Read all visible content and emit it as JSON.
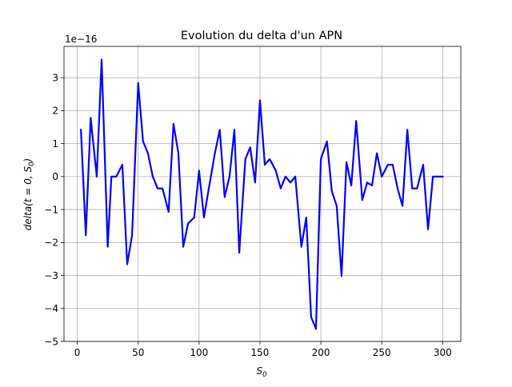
{
  "chart_data": {
    "type": "line",
    "title": "Evolution du delta d'un APN",
    "xlabel": "S",
    "xlabel_sub": "0",
    "ylabel": "delta(t = 0, S",
    "ylabel_sub": "0",
    "ylabel_close": ")",
    "y_offset_label": "1e−16",
    "xlim": [
      -10.9,
      314.9
    ],
    "ylim": [
      -5.0,
      3.95
    ],
    "x_ticks": [
      0,
      50,
      100,
      150,
      200,
      250,
      300
    ],
    "x_tick_labels": [
      "0",
      "50",
      "100",
      "150",
      "200",
      "250",
      "300"
    ],
    "y_ticks": [
      -5,
      -4,
      -3,
      -2,
      -1,
      0,
      1,
      2,
      3
    ],
    "y_tick_labels": [
      "−5",
      "−4",
      "−3",
      "−2",
      "−1",
      "0",
      "1",
      "2",
      "3"
    ],
    "grid": true,
    "legend": "none",
    "series_color": "#0000ff",
    "x": [
      3,
      7,
      11,
      16,
      20,
      25,
      28,
      32,
      37,
      41,
      45,
      50,
      54,
      58,
      62,
      66,
      70,
      75,
      79,
      83,
      87,
      91,
      96,
      100,
      104,
      108,
      113,
      117,
      121,
      125,
      129,
      133,
      138,
      142,
      146,
      150,
      154,
      158,
      163,
      167,
      171,
      175,
      179,
      184,
      188,
      192,
      196,
      200,
      205,
      209,
      213,
      217,
      221,
      225,
      229,
      234,
      238,
      242,
      246,
      250,
      255,
      259,
      263,
      267,
      271,
      275,
      279,
      284,
      288,
      292,
      296,
      300
    ],
    "y": [
      1.42,
      -1.78,
      1.78,
      0.0,
      3.55,
      -2.13,
      0.0,
      0.0,
      0.36,
      -2.66,
      -1.78,
      2.84,
      1.07,
      0.71,
      0.0,
      -0.36,
      -0.36,
      -1.07,
      1.6,
      0.71,
      -2.13,
      -1.42,
      -1.24,
      0.18,
      -1.24,
      -0.36,
      0.71,
      1.42,
      -0.62,
      0.0,
      1.42,
      -2.31,
      0.53,
      0.89,
      -0.18,
      2.31,
      0.36,
      0.53,
      0.18,
      -0.36,
      0.0,
      -0.18,
      0.0,
      -2.13,
      -1.24,
      -4.26,
      -4.62,
      0.53,
      1.07,
      -0.44,
      -0.89,
      -3.02,
      0.44,
      -0.27,
      1.69,
      -0.71,
      -0.18,
      -0.27,
      0.71,
      0.0,
      0.36,
      0.36,
      -0.36,
      -0.89,
      1.42,
      -0.36,
      -0.36,
      0.36,
      -1.6,
      0.0,
      0.0,
      0.0
    ]
  }
}
